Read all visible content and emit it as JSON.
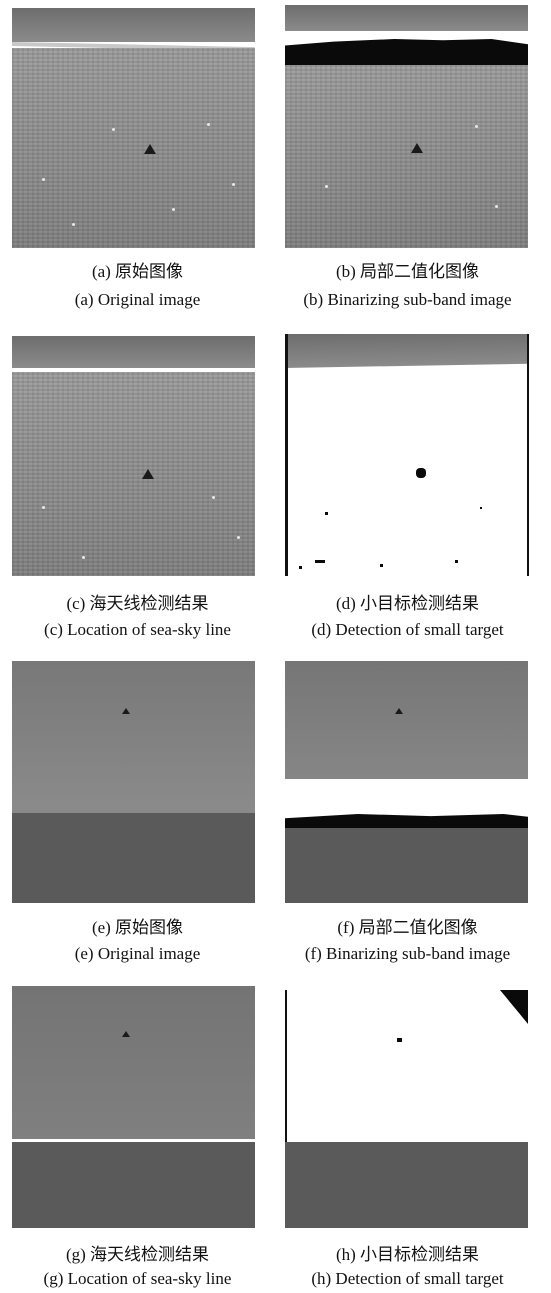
{
  "figures": [
    {
      "id": "a",
      "cn": "(a) 原始图像",
      "en": "(a) Original image"
    },
    {
      "id": "b",
      "cn": "(b) 局部二值化图像",
      "en": "(b) Binarizing sub-band image"
    },
    {
      "id": "c",
      "cn": "(c) 海天线检测结果",
      "en": "(c) Location of sea-sky line"
    },
    {
      "id": "d",
      "cn": "(d) 小目标检测结果",
      "en": "(d) Detection of small target"
    },
    {
      "id": "e",
      "cn": "(e) 原始图像",
      "en": "(e) Original image"
    },
    {
      "id": "f",
      "cn": "(f) 局部二值化图像",
      "en": "(f) Binarizing sub-band image"
    },
    {
      "id": "g",
      "cn": "(g) 海天线检测结果",
      "en": "(g) Location of sea-sky line"
    },
    {
      "id": "h",
      "cn": "(h) 小目标检测结果",
      "en": "(h) Detection of small target"
    }
  ]
}
